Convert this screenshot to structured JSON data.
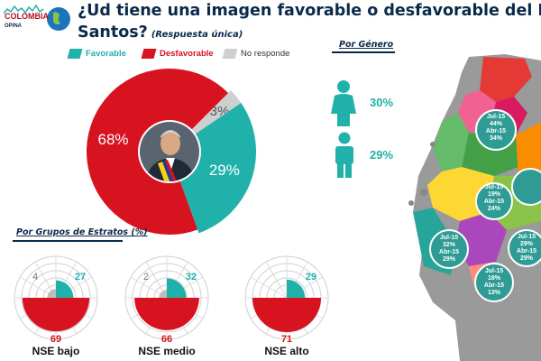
{
  "logo": {
    "name": "COLOMBIA",
    "sub": "OPINA"
  },
  "title": {
    "line1": "¿Ud tiene una imagen favorable o desfavorable del Presidente de la República, Juan Manuel",
    "line2": "Santos?",
    "note": "(Respuesta única)"
  },
  "legend": [
    {
      "label": "Favorable",
      "color": "#20b2aa"
    },
    {
      "label": "Desfavorable",
      "color": "#d7131f"
    },
    {
      "label": "No responde",
      "color": "#cfcfcf"
    }
  ],
  "chart_data": [
    {
      "type": "pie",
      "categories": [
        "Favorable",
        "Desfavorable",
        "No responde"
      ],
      "values": [
        29,
        68,
        3
      ],
      "labels": [
        "29%",
        "68%",
        "3%"
      ],
      "colors": [
        "#20b2aa",
        "#d7131f",
        "#cfcfcf"
      ]
    },
    {
      "type": "pie",
      "title": "Por Grupos de Estratos (%)",
      "series": [
        {
          "name": "NSE bajo",
          "values": [
            27,
            69,
            4
          ]
        },
        {
          "name": "NSE medio",
          "values": [
            32,
            66,
            2
          ]
        },
        {
          "name": "NSE alto",
          "values": [
            29,
            71,
            0
          ]
        }
      ],
      "categories": [
        "Favorable",
        "Desfavorable",
        "No responde"
      ]
    },
    {
      "type": "bar",
      "title": "Por Género",
      "categories": [
        "Mujer",
        "Hombre"
      ],
      "values": [
        30,
        29
      ],
      "labels": [
        "30%",
        "29%"
      ]
    }
  ],
  "gender": {
    "title": "Por Género",
    "female_pct": "30%",
    "male_pct": "29%"
  },
  "strata": {
    "title": "Por Grupos de Estratos (%)",
    "groups": [
      {
        "label": "NSE bajo",
        "fav": "27",
        "desf": "69",
        "nr": "4",
        "fav_v": 27,
        "desf_v": 69,
        "nr_v": 4
      },
      {
        "label": "NSE medio",
        "fav": "32",
        "desf": "66",
        "nr": "2",
        "fav_v": 32,
        "desf_v": 66,
        "nr_v": 2
      },
      {
        "label": "NSE alto",
        "fav": "29",
        "desf": "71",
        "nr": "",
        "fav_v": 29,
        "desf_v": 71,
        "nr_v": 0
      }
    ]
  },
  "map": {
    "labels": [
      {
        "l1": "Jul-15",
        "l2": "44%",
        "l3": "Abr-15",
        "l4": "34%"
      },
      {
        "l1": "Jul-15",
        "l2": "19%",
        "l3": "Abr-15",
        "l4": "24%"
      },
      {
        "l1": "Jul-15",
        "l2": "32%",
        "l3": "Abr-15",
        "l4": "29%"
      },
      {
        "l1": "Jul-15",
        "l2": "29%",
        "l3": "Abr-15",
        "l4": "29%"
      },
      {
        "l1": "Jul-15",
        "l2": "18%",
        "l3": "Abr-15",
        "l4": "13%"
      }
    ]
  }
}
